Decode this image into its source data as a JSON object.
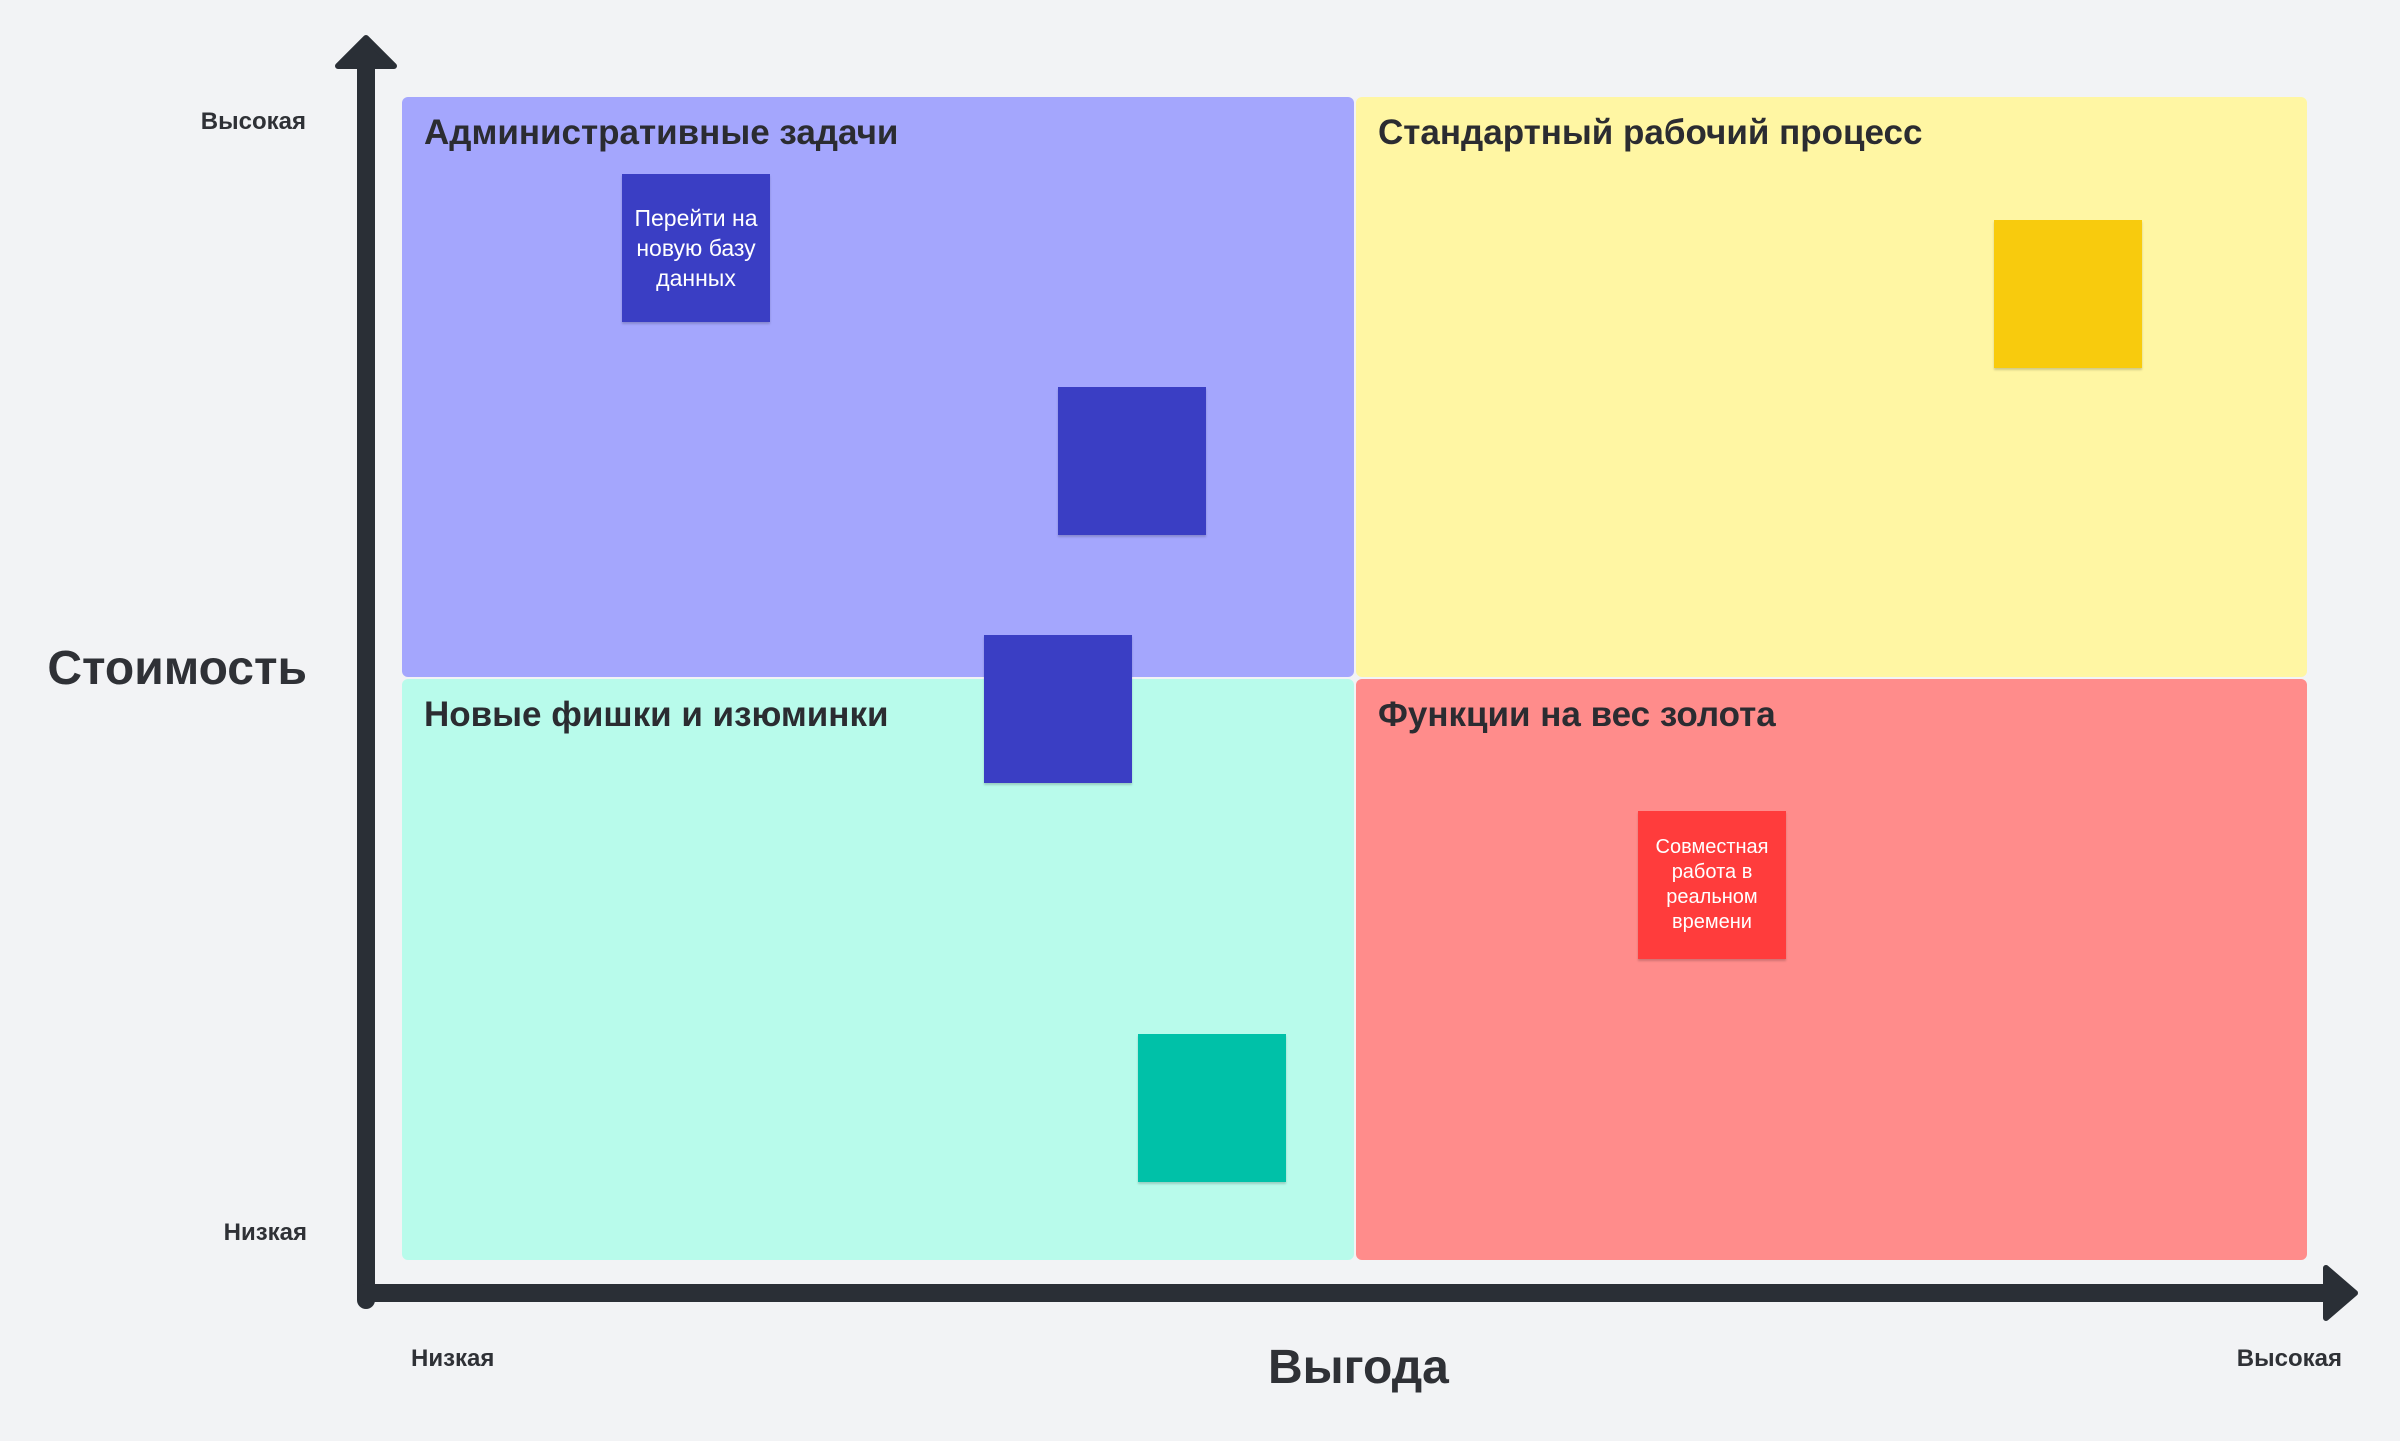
{
  "axes": {
    "y_title": "Стоимость",
    "x_title": "Выгода",
    "y_high": "Высокая",
    "y_low": "Низкая",
    "x_low": "Низкая",
    "x_high": "Высокая",
    "color": "#2a2f36"
  },
  "quadrants": [
    {
      "id": "admin",
      "title": "Административные задачи",
      "color": "#a4a6fd"
    },
    {
      "id": "standard",
      "title": "Стандартный рабочий процесс",
      "color": "#fff6a3"
    },
    {
      "id": "features",
      "title": "Новые фишки и изюминки",
      "color": "#b8fbeb"
    },
    {
      "id": "gold",
      "title": "Функции на вес золота",
      "color": "#ff8c8b"
    }
  ],
  "stickies": [
    {
      "text": "Перейти на новую базу данных",
      "color": "#3a3ec4"
    },
    {
      "text": "",
      "color": "#3a3ec4"
    },
    {
      "text": "",
      "color": "#3a3ec4"
    },
    {
      "text": "",
      "color": "#f8cb0d"
    },
    {
      "text": "",
      "color": "#00c1a8"
    },
    {
      "text": "Совместная работа в реальном времени",
      "color": "#ff3c3c"
    }
  ]
}
